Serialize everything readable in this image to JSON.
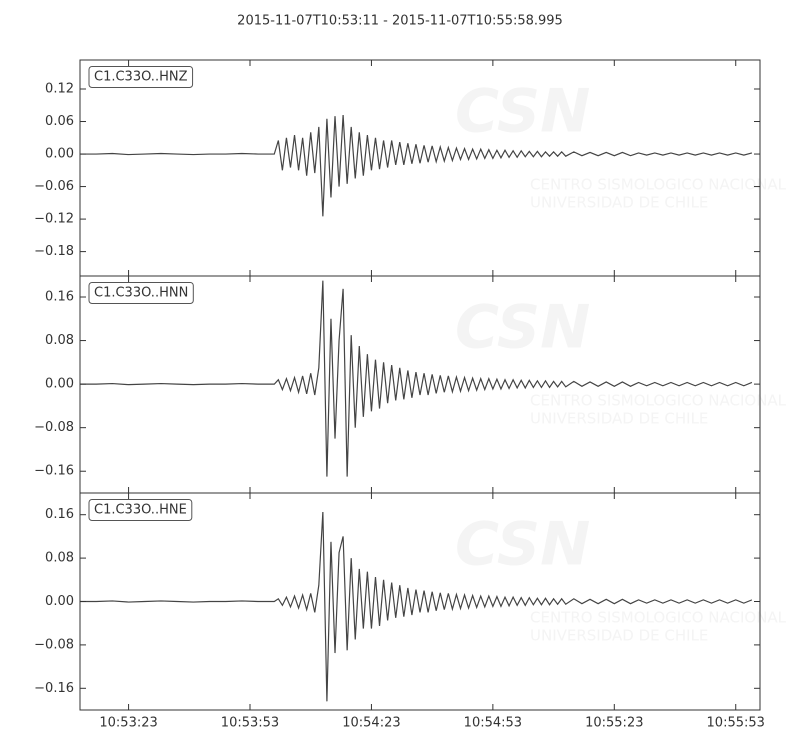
{
  "watermark": {
    "logo": "CSN",
    "line1": "CENTRO SISMOLOGICO NACIONAL",
    "line2": "UNIVERSIDAD DE CHILE"
  },
  "chart_data": [
    {
      "type": "line",
      "title": "2015-11-07T10:53:11  -  2015-11-07T10:55:58.995",
      "label": "C1.C33O..HNZ",
      "color": "#444444",
      "xlim": [
        0,
        167.995
      ],
      "ylim": [
        -0.225,
        0.1735
      ],
      "yticks": [
        {
          "value": -0.18,
          "label": "−0.18"
        },
        {
          "value": -0.12,
          "label": "−0.12"
        },
        {
          "value": -0.06,
          "label": "−0.06"
        },
        {
          "value": 0,
          "label": "0.00"
        },
        0.06,
        0.12
      ],
      "x": [
        0,
        4,
        8,
        12,
        16,
        20,
        24,
        28,
        32,
        36,
        40,
        44,
        48,
        49,
        50,
        51,
        52,
        53,
        54,
        55,
        56,
        57,
        58,
        59,
        60,
        61,
        62,
        63,
        64,
        65,
        66,
        67,
        68,
        69,
        70,
        71,
        72,
        73,
        74,
        75,
        76,
        77,
        78,
        79,
        80,
        81,
        82,
        83,
        84,
        85,
        86,
        87,
        88,
        89,
        90,
        91,
        92,
        93,
        94,
        95,
        96,
        97,
        98,
        99,
        100,
        101,
        102,
        103,
        104,
        105,
        106,
        107,
        108,
        109,
        110,
        111,
        112,
        113,
        114,
        115,
        116,
        117,
        118,
        119,
        120,
        122,
        124,
        126,
        128,
        130,
        132,
        134,
        136,
        138,
        140,
        142,
        144,
        146,
        148,
        150,
        152,
        154,
        156,
        158,
        160,
        162,
        164,
        166
      ],
      "values": [
        0,
        0,
        0.001,
        -0.001,
        0,
        0.001,
        0,
        -0.001,
        0,
        0,
        0.001,
        0,
        0,
        0.025,
        -0.03,
        0.03,
        -0.025,
        0.035,
        -0.03,
        0.03,
        -0.04,
        0.04,
        -0.035,
        0.05,
        -0.115,
        0.065,
        -0.08,
        0.07,
        -0.06,
        0.072,
        -0.055,
        0.05,
        -0.045,
        0.04,
        -0.04,
        0.035,
        -0.03,
        0.03,
        -0.028,
        0.025,
        -0.025,
        0.025,
        -0.02,
        0.022,
        -0.02,
        0.02,
        -0.018,
        0.018,
        -0.017,
        0.016,
        -0.015,
        0.015,
        -0.014,
        0.013,
        -0.013,
        0.012,
        -0.012,
        0.011,
        -0.01,
        0.01,
        -0.01,
        0.009,
        -0.009,
        0.009,
        -0.008,
        0.008,
        -0.008,
        0.007,
        -0.007,
        0.007,
        -0.006,
        0.006,
        -0.006,
        0.006,
        -0.005,
        0.005,
        -0.005,
        0.005,
        -0.005,
        0.004,
        -0.004,
        0.004,
        -0.004,
        0.004,
        -0.004,
        0.004,
        -0.003,
        0.003,
        -0.003,
        0.003,
        -0.003,
        0.003,
        -0.003,
        0.002,
        -0.002,
        0.002,
        -0.002,
        0.002,
        -0.002,
        0.002,
        -0.002,
        0.002,
        -0.002,
        0.002,
        -0.002,
        0.002,
        -0.002,
        0.002
      ]
    },
    {
      "type": "line",
      "label": "C1.C33O..HNN",
      "color": "#444444",
      "xlim": [
        0,
        167.995
      ],
      "ylim": [
        -0.2,
        0.1986
      ],
      "yticks": [
        {
          "value": -0.16,
          "label": "−0.16"
        },
        {
          "value": -0.08,
          "label": "−0.08"
        },
        {
          "value": 0,
          "label": "0.00"
        },
        0.08,
        0.16
      ],
      "x": [
        0,
        4,
        8,
        12,
        16,
        20,
        24,
        28,
        32,
        36,
        40,
        44,
        48,
        49,
        50,
        51,
        52,
        53,
        54,
        55,
        56,
        57,
        58,
        59,
        60,
        61,
        62,
        63,
        64,
        65,
        66,
        67,
        68,
        69,
        70,
        71,
        72,
        73,
        74,
        75,
        76,
        77,
        78,
        79,
        80,
        81,
        82,
        83,
        84,
        85,
        86,
        87,
        88,
        89,
        90,
        91,
        92,
        93,
        94,
        95,
        96,
        97,
        98,
        99,
        100,
        101,
        102,
        103,
        104,
        105,
        106,
        107,
        108,
        109,
        110,
        111,
        112,
        113,
        114,
        115,
        116,
        117,
        118,
        119,
        120,
        122,
        124,
        126,
        128,
        130,
        132,
        134,
        136,
        138,
        140,
        142,
        144,
        146,
        148,
        150,
        152,
        154,
        156,
        158,
        160,
        162,
        164,
        166
      ],
      "values": [
        0,
        0,
        0.001,
        -0.001,
        0,
        0.001,
        0,
        -0.001,
        0,
        0,
        0.001,
        0,
        0,
        0.008,
        -0.01,
        0.01,
        -0.012,
        0.012,
        -0.015,
        0.015,
        -0.018,
        0.02,
        -0.02,
        0.03,
        0.19,
        -0.17,
        0.12,
        -0.1,
        0.08,
        0.175,
        -0.17,
        0.09,
        -0.08,
        0.07,
        -0.06,
        0.055,
        -0.05,
        0.045,
        -0.045,
        0.04,
        -0.035,
        0.035,
        -0.03,
        0.03,
        -0.028,
        0.025,
        -0.025,
        0.022,
        -0.02,
        0.02,
        -0.02,
        0.018,
        -0.017,
        0.016,
        -0.015,
        0.015,
        -0.014,
        0.013,
        -0.013,
        0.012,
        -0.012,
        0.011,
        -0.011,
        0.01,
        -0.01,
        0.01,
        -0.009,
        0.009,
        -0.009,
        0.008,
        -0.008,
        0.008,
        -0.007,
        0.007,
        -0.007,
        0.007,
        -0.006,
        0.006,
        -0.006,
        0.006,
        -0.006,
        0.005,
        -0.005,
        0.005,
        -0.005,
        0.005,
        -0.004,
        0.004,
        -0.004,
        0.004,
        -0.004,
        0.004,
        -0.004,
        0.003,
        -0.003,
        0.003,
        -0.003,
        0.003,
        -0.003,
        0.003,
        -0.003,
        0.003,
        -0.003,
        0.003,
        -0.003,
        0.003,
        -0.003,
        0.003
      ]
    },
    {
      "type": "line",
      "label": "C1.C33O..HNE",
      "color": "#444444",
      "xlim": [
        0,
        167.995
      ],
      "ylim": [
        -0.2,
        0.2
      ],
      "yticks": [
        {
          "value": -0.16,
          "label": "−0.16"
        },
        {
          "value": -0.08,
          "label": "−0.08"
        },
        {
          "value": 0,
          "label": "0.00"
        },
        0.08,
        0.16
      ],
      "xticks": [
        {
          "value": 12,
          "label": "10:53:23"
        },
        {
          "value": 42,
          "label": "10:53:53"
        },
        {
          "value": 72,
          "label": "10:54:23"
        },
        {
          "value": 102,
          "label": "10:54:53"
        },
        {
          "value": 132,
          "label": "10:55:23"
        },
        {
          "value": 162,
          "label": "10:55:53"
        }
      ],
      "x": [
        0,
        4,
        8,
        12,
        16,
        20,
        24,
        28,
        32,
        36,
        40,
        44,
        48,
        49,
        50,
        51,
        52,
        53,
        54,
        55,
        56,
        57,
        58,
        59,
        60,
        61,
        62,
        63,
        64,
        65,
        66,
        67,
        68,
        69,
        70,
        71,
        72,
        73,
        74,
        75,
        76,
        77,
        78,
        79,
        80,
        81,
        82,
        83,
        84,
        85,
        86,
        87,
        88,
        89,
        90,
        91,
        92,
        93,
        94,
        95,
        96,
        97,
        98,
        99,
        100,
        101,
        102,
        103,
        104,
        105,
        106,
        107,
        108,
        109,
        110,
        111,
        112,
        113,
        114,
        115,
        116,
        117,
        118,
        119,
        120,
        122,
        124,
        126,
        128,
        130,
        132,
        134,
        136,
        138,
        140,
        142,
        144,
        146,
        148,
        150,
        152,
        154,
        156,
        158,
        160,
        162,
        164,
        166
      ],
      "values": [
        0,
        0,
        0.001,
        -0.001,
        0,
        0.001,
        0,
        -0.001,
        0,
        0,
        0.001,
        0,
        0,
        0.005,
        -0.007,
        0.008,
        -0.01,
        0.01,
        -0.012,
        0.012,
        -0.015,
        0.015,
        -0.02,
        0.03,
        0.165,
        -0.184,
        0.11,
        -0.095,
        0.09,
        0.12,
        -0.09,
        0.08,
        -0.07,
        0.06,
        -0.05,
        0.055,
        -0.05,
        0.045,
        -0.045,
        0.04,
        -0.035,
        0.035,
        -0.03,
        0.03,
        -0.028,
        0.025,
        -0.025,
        0.022,
        -0.02,
        0.02,
        -0.02,
        0.018,
        -0.017,
        0.016,
        -0.015,
        0.015,
        -0.014,
        0.013,
        -0.013,
        0.012,
        -0.012,
        0.011,
        -0.011,
        0.01,
        -0.01,
        0.01,
        -0.009,
        0.009,
        -0.009,
        0.008,
        -0.008,
        0.008,
        -0.007,
        0.007,
        -0.007,
        0.007,
        -0.006,
        0.006,
        -0.006,
        0.006,
        -0.006,
        0.005,
        -0.005,
        0.005,
        -0.005,
        0.005,
        -0.004,
        0.004,
        -0.004,
        0.004,
        -0.004,
        0.004,
        -0.004,
        0.003,
        -0.003,
        0.003,
        -0.003,
        0.003,
        -0.003,
        0.003,
        -0.003,
        0.003,
        -0.003,
        0.003,
        -0.003,
        0.003,
        -0.003,
        0.003
      ]
    }
  ]
}
